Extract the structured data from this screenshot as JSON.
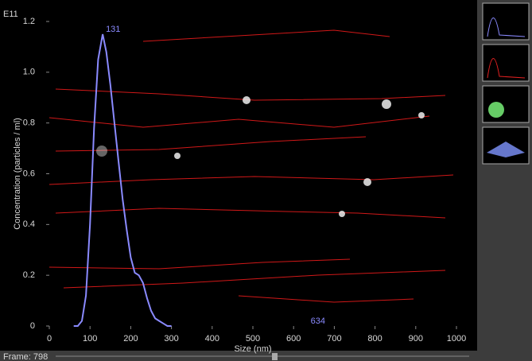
{
  "well": "E11",
  "frame": "Frame: 798",
  "chart_data": {
    "type": "line",
    "xlabel": "Size (nm)",
    "ylabel": "Concentration (particles / ml)",
    "x": [
      60,
      70,
      80,
      90,
      100,
      110,
      120,
      131,
      140,
      150,
      160,
      170,
      180,
      190,
      200,
      210,
      220,
      230,
      240,
      250,
      260,
      270,
      280,
      290,
      300
    ],
    "values": [
      0,
      0,
      0.02,
      0.12,
      0.4,
      0.78,
      1.05,
      1.15,
      1.08,
      0.95,
      0.8,
      0.65,
      0.5,
      0.38,
      0.27,
      0.21,
      0.2,
      0.17,
      0.11,
      0.06,
      0.03,
      0.02,
      0.01,
      0,
      0
    ],
    "color": "#8a8aff",
    "xlim": [
      0,
      1000
    ],
    "xticks": [
      0,
      100,
      200,
      300,
      400,
      500,
      600,
      700,
      800,
      900,
      1000
    ],
    "ylim": [
      0,
      1.2
    ],
    "yticks": [
      0,
      0.2,
      0.4,
      0.6,
      0.8,
      {
        "value": 1,
        "label": "1.0"
      },
      1.2
    ],
    "annotations": [
      "131",
      "634"
    ]
  }
}
